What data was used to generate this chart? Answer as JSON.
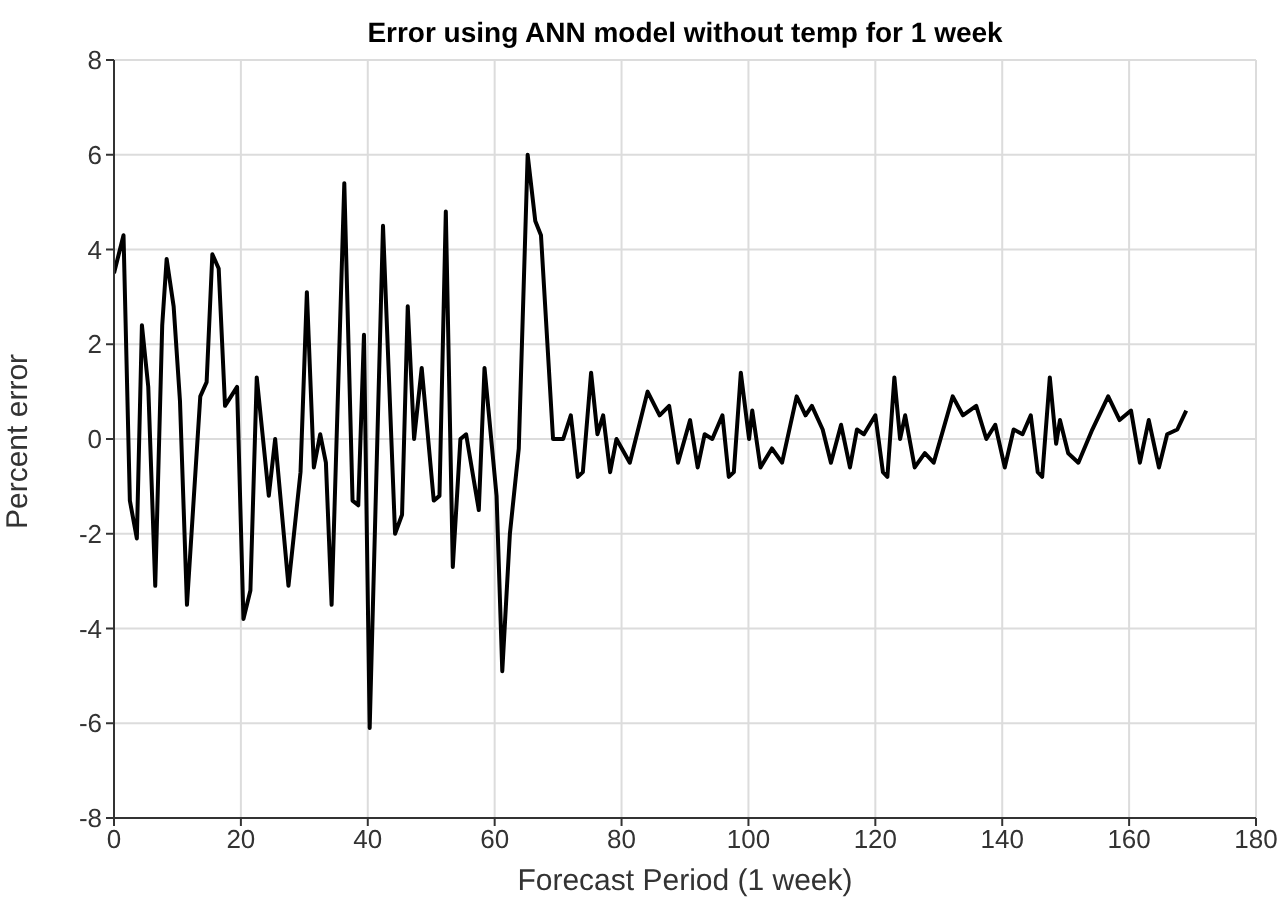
{
  "chart_data": {
    "type": "line",
    "title": "Error using ANN model without temp for 1 week",
    "xlabel": "Forecast Period (1 week)",
    "ylabel": "Percent error",
    "x": [
      0,
      1.5,
      2.5,
      3.6,
      4.4,
      5.4,
      6.5,
      7.6,
      8.3,
      9.4,
      10.4,
      11.5,
      13.6,
      14.6,
      15.5,
      16.5,
      17.5,
      19.4,
      20.4,
      21.5,
      22.5,
      24.4,
      25.4,
      27.5,
      29.4,
      30.4,
      31.5,
      32.5,
      33.4,
      34.3,
      36.3,
      37.6,
      38.5,
      39.4,
      40.3,
      42.4,
      44.3,
      45.4,
      46.3,
      47.3,
      48.5,
      50.4,
      51.3,
      52.3,
      53.4,
      54.6,
      55.5,
      57.5,
      58.4,
      60.3,
      61.2,
      62.4,
      63.8,
      65.2,
      66.4,
      67.3,
      69.2,
      70.8,
      72,
      73.1,
      73.9,
      75.2,
      76.2,
      77.1,
      78.2,
      79.2,
      81.3,
      84.1,
      86,
      87.5,
      88.9,
      90.8,
      92,
      93.1,
      94.3,
      95.9,
      96.9,
      97.7,
      98.8,
      100.1,
      100.6,
      101.9,
      103.7,
      105.3,
      107.6,
      109,
      110,
      111.7,
      113,
      114.6,
      116,
      117.1,
      118.2,
      120,
      121.2,
      121.9,
      123,
      123.9,
      124.7,
      126.2,
      127.8,
      129.2,
      132.2,
      133.8,
      135.9,
      137.5,
      138.9,
      140.4,
      141.8,
      143.2,
      144.5,
      145.6,
      146.3,
      147.5,
      148.5,
      149.1,
      150.4,
      152,
      154.2,
      156.7,
      158.5,
      160.3,
      161.7,
      163.1,
      164.7,
      166,
      167.6,
      169
    ],
    "series": [
      {
        "color": "#000000",
        "values": [
          3.5,
          4.3,
          -1.3,
          -2.1,
          2.4,
          1.1,
          -3.1,
          2.4,
          3.8,
          2.8,
          0.8,
          -3.5,
          0.9,
          1.2,
          3.9,
          3.6,
          0.7,
          1.1,
          -3.8,
          -3.2,
          1.3,
          -1.2,
          0,
          -3.1,
          -0.7,
          3.1,
          -0.6,
          0.1,
          -0.5,
          -3.5,
          5.4,
          -1.3,
          -1.4,
          2.2,
          -6.1,
          4.5,
          -2,
          -1.6,
          2.8,
          0,
          1.5,
          -1.3,
          -1.2,
          4.8,
          -2.7,
          0,
          0.1,
          -1.5,
          1.5,
          -1.2,
          -4.9,
          -2,
          -0.2,
          6,
          4.6,
          4.3,
          0,
          0,
          0.5,
          -0.8,
          -0.7,
          1.4,
          0.1,
          0.5,
          -0.7,
          0,
          -0.5,
          1,
          0.5,
          0.7,
          -0.5,
          0.4,
          -0.6,
          0.1,
          0,
          0.5,
          -0.8,
          -0.7,
          1.4,
          0,
          0.6,
          -0.6,
          -0.2,
          -0.5,
          0.9,
          0.5,
          0.7,
          0.2,
          -0.5,
          0.3,
          -0.6,
          0.2,
          0.1,
          0.5,
          -0.7,
          -0.8,
          1.3,
          0,
          0.5,
          -0.6,
          -0.3,
          -0.5,
          0.9,
          0.5,
          0.7,
          0,
          0.3,
          -0.6,
          0.2,
          0.1,
          0.5,
          -0.7,
          -0.8,
          1.3,
          -0.1,
          0.4,
          -0.3,
          -0.5,
          0.2,
          0.9,
          0.4,
          0.6,
          -0.5,
          0.4,
          -0.6,
          0.1,
          0.2,
          0.6
        ]
      }
    ],
    "xlim": [
      0,
      180
    ],
    "xticks": [
      0,
      20,
      40,
      60,
      80,
      100,
      120,
      140,
      160,
      180
    ],
    "ylim": [
      -8,
      8
    ],
    "yticks": [
      -8,
      -6,
      -4,
      -2,
      0,
      2,
      4,
      6,
      8
    ],
    "grid": true,
    "marker": "none",
    "line_style": "solid"
  }
}
